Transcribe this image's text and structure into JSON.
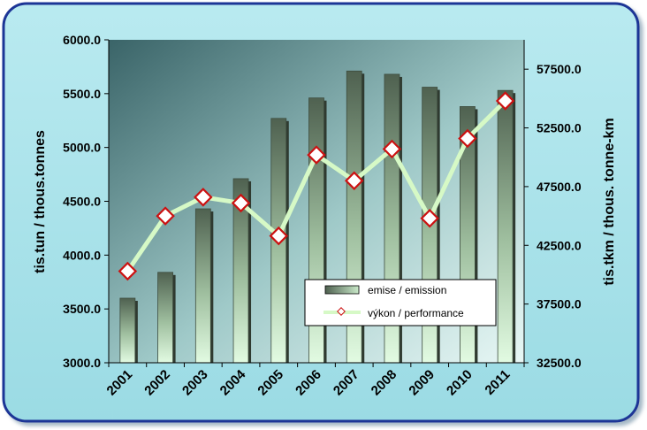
{
  "chart_data": {
    "type": "bar",
    "categories": [
      "2001",
      "2002",
      "2003",
      "2004",
      "2005",
      "2006",
      "2007",
      "2008",
      "2009",
      "2010",
      "2011"
    ],
    "series": [
      {
        "name": "emise / emission",
        "type": "bar",
        "axis": "left",
        "values": [
          3600,
          3840,
          4430,
          4710,
          5270,
          5460,
          5710,
          5680,
          5560,
          5380,
          5530
        ]
      },
      {
        "name": "výkon / performance",
        "type": "line",
        "axis": "right",
        "values": [
          40300,
          45000,
          46600,
          46100,
          43300,
          50200,
          48000,
          50700,
          44800,
          51600,
          54800
        ]
      }
    ],
    "ylabel": "tis.tun / thous.tonnes",
    "y2label": "tis.tkm / thous. tonne-km",
    "ylim": [
      3000,
      6000
    ],
    "y2lim": [
      32500,
      60000
    ],
    "yticks": [
      "3000.0",
      "3500.0",
      "4000.0",
      "4500.0",
      "5000.0",
      "5500.0",
      "6000.0"
    ],
    "y2ticks": [
      "32500.0",
      "37500.0",
      "42500.0",
      "47500.0",
      "52500.0",
      "57500.0"
    ],
    "legend_position": "bottom-right inside plot",
    "colors": {
      "bar_dark": "#4f6150",
      "bar_light": "#d7f6d7",
      "line": "#d6f9c6",
      "marker_fill": "#ffffff",
      "marker_edge": "#cc1111",
      "background": "#a4e2ea",
      "frame_border": "#2a3fa0",
      "plot_dark": "#3f6b70",
      "plot_light": "#dff4f3"
    }
  }
}
